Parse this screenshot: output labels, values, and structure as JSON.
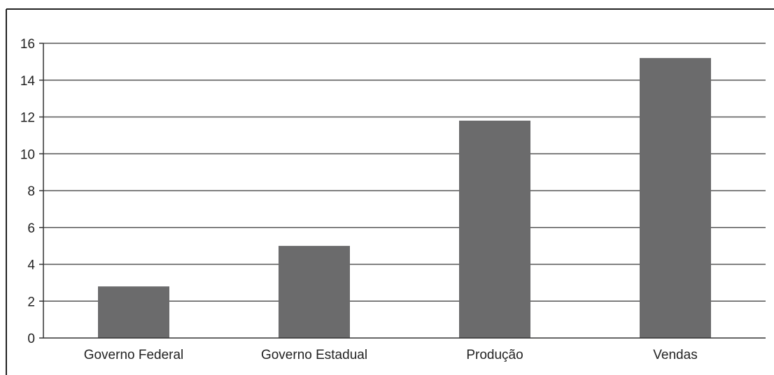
{
  "chart_data": {
    "type": "bar",
    "categories": [
      "Governo Federal",
      "Governo Estadual",
      "Produção",
      "Vendas"
    ],
    "values": [
      2.8,
      5.0,
      11.8,
      15.2
    ],
    "ylim": [
      0,
      16
    ],
    "yticks": [
      "0",
      "2",
      "4",
      "6",
      "8",
      "10",
      "12",
      "14",
      "16"
    ],
    "grid": true,
    "bar_color": "#6b6b6c",
    "grid_color": "#555555"
  }
}
